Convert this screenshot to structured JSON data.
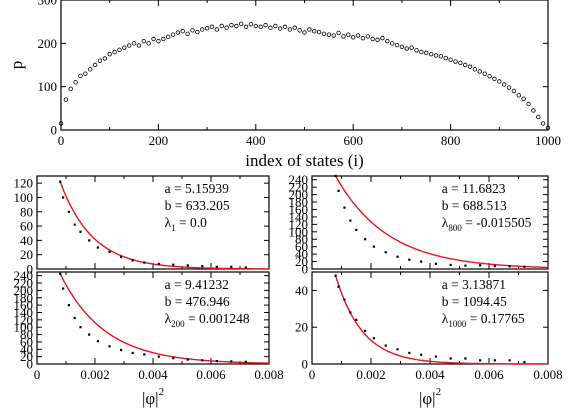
{
  "chart_data": [
    {
      "id": "top",
      "type": "scatter",
      "xlabel": "index of states (i)",
      "ylabel": "p",
      "xlim": [
        0,
        1000
      ],
      "ylim": [
        0,
        300
      ],
      "xticks": [
        "0",
        "200",
        "400",
        "600",
        "800",
        "1000"
      ],
      "yticks": [
        "0",
        "100",
        "200",
        "300"
      ],
      "marker": "open-circle",
      "series": [
        {
          "name": "",
          "x": [
            0,
            10,
            20,
            30,
            40,
            50,
            60,
            70,
            80,
            90,
            100,
            110,
            120,
            130,
            140,
            150,
            160,
            170,
            180,
            190,
            200,
            210,
            220,
            230,
            240,
            250,
            260,
            270,
            280,
            290,
            300,
            310,
            320,
            330,
            340,
            350,
            360,
            370,
            380,
            390,
            400,
            410,
            420,
            430,
            440,
            450,
            460,
            470,
            480,
            490,
            500,
            510,
            520,
            530,
            540,
            550,
            560,
            570,
            580,
            590,
            600,
            610,
            620,
            630,
            640,
            650,
            660,
            670,
            680,
            690,
            700,
            710,
            720,
            730,
            740,
            750,
            760,
            770,
            780,
            790,
            800,
            810,
            820,
            830,
            840,
            850,
            860,
            870,
            880,
            890,
            900,
            910,
            920,
            930,
            940,
            950,
            960,
            970,
            980,
            990,
            1000
          ],
          "y": [
            15,
            70,
            95,
            110,
            125,
            130,
            140,
            150,
            160,
            165,
            175,
            180,
            185,
            190,
            195,
            200,
            195,
            205,
            200,
            210,
            205,
            210,
            215,
            220,
            225,
            228,
            222,
            230,
            226,
            232,
            235,
            238,
            232,
            240,
            236,
            242,
            240,
            245,
            238,
            244,
            240,
            238,
            242,
            236,
            240,
            234,
            238,
            232,
            236,
            230,
            225,
            232,
            228,
            226,
            222,
            220,
            218,
            224,
            216,
            220,
            214,
            218,
            212,
            216,
            210,
            208,
            212,
            205,
            200,
            196,
            192,
            188,
            190,
            184,
            180,
            178,
            175,
            172,
            170,
            166,
            162,
            158,
            155,
            150,
            146,
            140,
            135,
            130,
            124,
            118,
            112,
            105,
            98,
            90,
            80,
            72,
            60,
            45,
            30,
            15,
            5
          ]
        }
      ]
    },
    {
      "id": "panel-1",
      "type": "scatter",
      "xlabel": "",
      "ylabel": "",
      "xlim": [
        0,
        0.008
      ],
      "ylim": [
        0,
        130
      ],
      "yticks": [
        "0",
        "20",
        "40",
        "60",
        "80",
        "100",
        "120"
      ],
      "annotation": {
        "a": "a = 5.15939",
        "b": "b = 633.205",
        "lambda_main": "λ",
        "lambda_sub": "1",
        "lambda_val": " = 0.0"
      },
      "fit": {
        "a": 5.15939,
        "b": 633.205
      },
      "points": {
        "x": [
          0.0008,
          0.0009,
          0.0011,
          0.0013,
          0.0015,
          0.0018,
          0.0021,
          0.0025,
          0.0029,
          0.0033,
          0.0037,
          0.0042,
          0.0047,
          0.0052,
          0.0057,
          0.0062,
          0.0067,
          0.0072
        ],
        "y": [
          122,
          100,
          80,
          62,
          52,
          40,
          30,
          24,
          17,
          12,
          9,
          7,
          6,
          5,
          4,
          3,
          3,
          2
        ]
      }
    },
    {
      "id": "panel-2",
      "type": "scatter",
      "xlabel": "",
      "ylabel": "",
      "xlim": [
        0,
        0.008
      ],
      "ylim": [
        0,
        250
      ],
      "yticks": [
        "0",
        "20",
        "40",
        "60",
        "80",
        "100",
        "120",
        "140",
        "160",
        "180",
        "200",
        "220",
        "240"
      ],
      "annotation": {
        "a": "a = 11.6823",
        "b": "b = 688.513",
        "lambda_main": "λ",
        "lambda_sub": "800",
        "lambda_val": " = -0.015505"
      },
      "fit": {
        "a": 11.6823,
        "b": 688.513
      },
      "points": {
        "x": [
          0.0008,
          0.0009,
          0.0011,
          0.0013,
          0.0015,
          0.0018,
          0.0021,
          0.0025,
          0.0029,
          0.0033,
          0.0037,
          0.0042,
          0.0047,
          0.0052,
          0.0057,
          0.0062,
          0.0067,
          0.0072
        ],
        "y": [
          250,
          210,
          165,
          130,
          105,
          80,
          60,
          45,
          33,
          25,
          20,
          14,
          11,
          9,
          10,
          8,
          7,
          6
        ]
      }
    },
    {
      "id": "panel-3",
      "type": "scatter",
      "xlabel": "|φ|",
      "xlabel_sup": "2",
      "ylabel": "",
      "xlim": [
        0,
        0.008
      ],
      "ylim": [
        0,
        250
      ],
      "xticks": [
        "0",
        "0.002",
        "0.004",
        "0.006",
        "0.008"
      ],
      "yticks": [
        "0",
        "20",
        "40",
        "60",
        "80",
        "100",
        "120",
        "140",
        "160",
        "180",
        "200",
        "220",
        "240"
      ],
      "annotation": {
        "a": "a = 9.41232",
        "b": "b = 476.946",
        "lambda_main": "λ",
        "lambda_sub": "200",
        "lambda_val": " = 0.001248"
      },
      "fit": {
        "a": 9.41232,
        "b": 476.946
      },
      "points": {
        "x": [
          0.0008,
          0.0009,
          0.0011,
          0.0013,
          0.0015,
          0.0018,
          0.0021,
          0.0025,
          0.0029,
          0.0033,
          0.0037,
          0.0042,
          0.0047,
          0.0052,
          0.0057,
          0.0062,
          0.0067,
          0.0072
        ],
        "y": [
          245,
          205,
          160,
          125,
          100,
          80,
          62,
          48,
          38,
          30,
          26,
          20,
          16,
          12,
          10,
          8,
          7,
          6
        ]
      }
    },
    {
      "id": "panel-4",
      "type": "scatter",
      "xlabel": "|φ|",
      "xlabel_sup": "2",
      "ylabel": "",
      "xlim": [
        0,
        0.008
      ],
      "ylim": [
        0,
        50
      ],
      "xticks": [
        "0",
        "0.002",
        "0.004",
        "0.006",
        "0.008"
      ],
      "yticks": [
        "0",
        "20",
        "40"
      ],
      "annotation": {
        "a": "a = 3.13871",
        "b": "b = 1094.45",
        "lambda_main": "λ",
        "lambda_sub": "1000",
        "lambda_val": " = 0.17765"
      },
      "fit": {
        "a": 3.13871,
        "b": 1094.45
      },
      "points": {
        "x": [
          0.0008,
          0.0009,
          0.0011,
          0.0013,
          0.0015,
          0.0018,
          0.0021,
          0.0025,
          0.0029,
          0.0033,
          0.0037,
          0.0042,
          0.0047,
          0.0052,
          0.0057,
          0.0062,
          0.0067,
          0.0072
        ],
        "y": [
          48,
          42,
          35,
          28,
          24,
          18,
          14,
          10,
          8,
          6,
          5,
          4,
          3,
          3,
          2,
          2,
          2,
          1
        ]
      }
    }
  ],
  "colors": {
    "axis": "#000000",
    "marker": "#000000",
    "fit": "#e8141b"
  }
}
